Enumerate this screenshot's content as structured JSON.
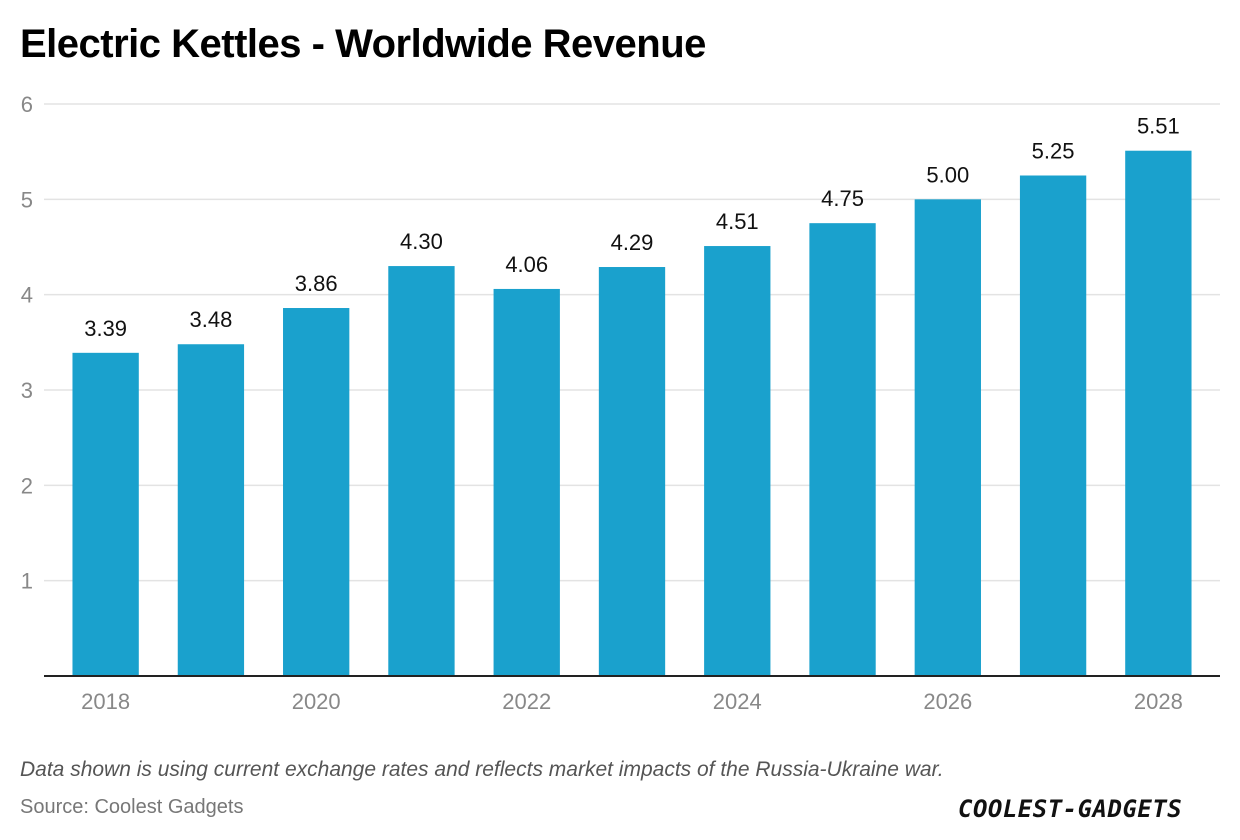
{
  "title": "Electric Kettles - Worldwide Revenue",
  "note": "Data shown is using current exchange rates and reflects market impacts of the Russia-Ukraine war.",
  "source": "Source: Coolest Gadgets",
  "brand": "COOLEST-GADGETS",
  "colors": {
    "bar": "#1aa1cd",
    "grid": "#e3e3e3",
    "axis": "#222222",
    "tick_label": "#888888",
    "value_label": "#111111"
  },
  "chart_data": {
    "type": "bar",
    "categories": [
      "2018",
      "2019",
      "2020",
      "2021",
      "2022",
      "2023",
      "2024",
      "2025",
      "2026",
      "2027",
      "2028"
    ],
    "values": [
      3.39,
      3.48,
      3.86,
      4.3,
      4.06,
      4.29,
      4.51,
      4.75,
      5.0,
      5.25,
      5.51
    ],
    "value_labels": [
      "3.39",
      "3.48",
      "3.86",
      "4.30",
      "4.06",
      "4.29",
      "4.51",
      "4.75",
      "5.00",
      "5.25",
      "5.51"
    ],
    "x_tick_labels": [
      "2018",
      "2020",
      "2022",
      "2024",
      "2026",
      "2028"
    ],
    "y_ticks": [
      1,
      2,
      3,
      4,
      5,
      6
    ],
    "ylim": [
      0,
      6
    ],
    "grid": true,
    "legend": "none",
    "xlabel": "",
    "ylabel": ""
  }
}
